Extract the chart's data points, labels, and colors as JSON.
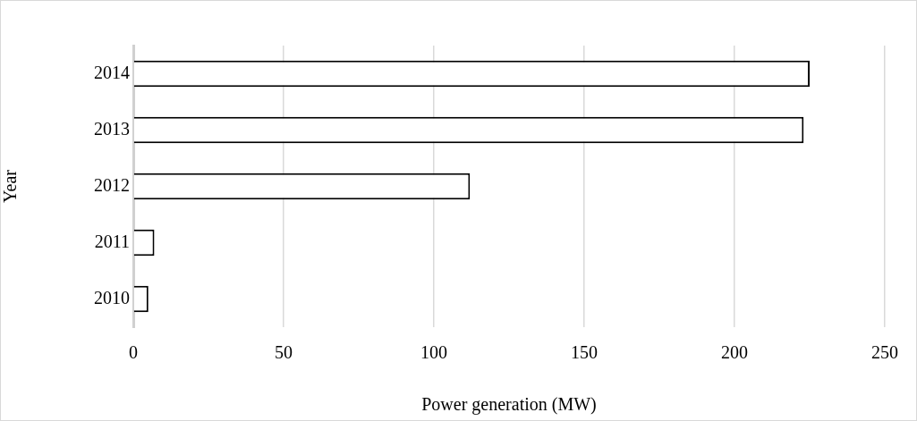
{
  "chart_data": {
    "type": "bar",
    "orientation": "horizontal",
    "xlabel": "Power generation (MW)",
    "ylabel": "Year",
    "categories": [
      "2014",
      "2013",
      "2012",
      "2011",
      "2010"
    ],
    "values": [
      225,
      223,
      112,
      7,
      5
    ],
    "color": "#ffffff",
    "xlim": [
      0,
      250
    ],
    "xticks": [
      0,
      50,
      100,
      150,
      200,
      250
    ],
    "grid": "x",
    "legend": false
  }
}
